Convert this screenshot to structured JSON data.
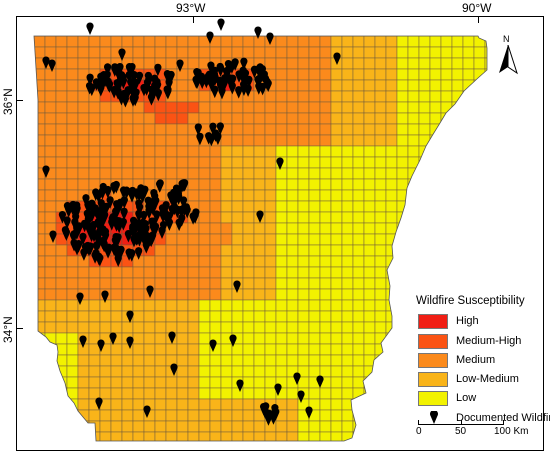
{
  "graticule": {
    "lon_labels": [
      "93°W",
      "90°W"
    ],
    "lat_labels": [
      "36°N",
      "34°N"
    ]
  },
  "north_arrow": {
    "label": "N"
  },
  "legend": {
    "title": "Wildfire Susceptibility",
    "classes": [
      {
        "label": "High",
        "color": "#f01e14"
      },
      {
        "label": "Medium-High",
        "color": "#fb5314"
      },
      {
        "label": "Medium",
        "color": "#fb8a1c"
      },
      {
        "label": "Low-Medium",
        "color": "#f9b419"
      },
      {
        "label": "Low",
        "color": "#f2f200"
      }
    ],
    "points_label": "Documented Wildfires",
    "point_icon": "map-pin-icon",
    "point_color": "#000000"
  },
  "scale_bar": {
    "labels": [
      "0",
      "50",
      "100 Km"
    ]
  },
  "grid_line_color": "#6e5a3c"
}
